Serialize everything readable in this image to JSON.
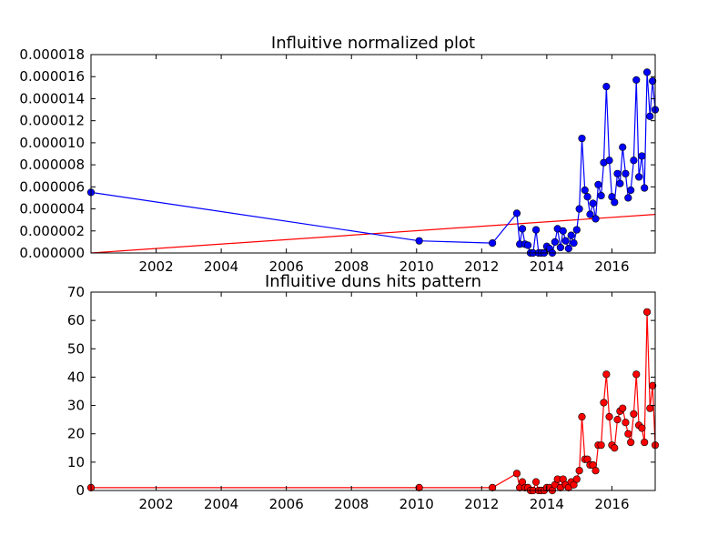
{
  "chart_data": [
    {
      "type": "line",
      "title": "Influitive normalized plot",
      "xlabel": "",
      "ylabel": "",
      "xlim": [
        2000.0,
        2017.33
      ],
      "ylim": [
        0,
        1.8e-05
      ],
      "xticks": [
        2002,
        2004,
        2006,
        2008,
        2010,
        2012,
        2014,
        2016
      ],
      "xtick_labels": [
        "2002",
        "2004",
        "2006",
        "2008",
        "2010",
        "2012",
        "2014",
        "2016"
      ],
      "yticks": [
        0,
        2e-06,
        4e-06,
        6e-06,
        8e-06,
        1e-05,
        1.2e-05,
        1.4e-05,
        1.6e-05,
        1.8e-05
      ],
      "ytick_labels": [
        "0.000000",
        "0.000002",
        "0.000004",
        "0.000006",
        "0.000008",
        "0.000010",
        "0.000012",
        "0.000014",
        "0.000016",
        "0.000018"
      ],
      "grid": false,
      "series": [
        {
          "color": "#0000ff",
          "marker": "circle",
          "points": [
            [
              2000.0,
              5.5e-06
            ],
            [
              2010.08,
              1.1e-06
            ],
            [
              2012.33,
              9e-07
            ],
            [
              2013.08,
              3.6e-06
            ],
            [
              2013.17,
              8e-07
            ],
            [
              2013.25,
              2.2e-06
            ],
            [
              2013.33,
              8e-07
            ],
            [
              2013.42,
              7e-07
            ],
            [
              2013.5,
              0.0
            ],
            [
              2013.58,
              0.0
            ],
            [
              2013.67,
              2.1e-06
            ],
            [
              2013.75,
              0.0
            ],
            [
              2013.83,
              0.0
            ],
            [
              2013.92,
              0.0
            ],
            [
              2014.0,
              6e-07
            ],
            [
              2014.08,
              4e-07
            ],
            [
              2014.17,
              0.0
            ],
            [
              2014.25,
              1e-06
            ],
            [
              2014.33,
              2.2e-06
            ],
            [
              2014.42,
              5e-07
            ],
            [
              2014.5,
              2e-06
            ],
            [
              2014.58,
              1.1e-06
            ],
            [
              2014.67,
              4e-07
            ],
            [
              2014.75,
              1.6e-06
            ],
            [
              2014.83,
              9e-07
            ],
            [
              2014.92,
              2.1e-06
            ],
            [
              2015.0,
              4e-06
            ],
            [
              2015.08,
              1.04e-05
            ],
            [
              2015.17,
              5.7e-06
            ],
            [
              2015.25,
              5.1e-06
            ],
            [
              2015.33,
              3.5e-06
            ],
            [
              2015.42,
              4.5e-06
            ],
            [
              2015.5,
              3.1e-06
            ],
            [
              2015.58,
              6.2e-06
            ],
            [
              2015.67,
              5.2e-06
            ],
            [
              2015.75,
              8.2e-06
            ],
            [
              2015.83,
              1.51e-05
            ],
            [
              2015.92,
              8.4e-06
            ],
            [
              2016.0,
              5.1e-06
            ],
            [
              2016.08,
              4.6e-06
            ],
            [
              2016.17,
              7.2e-06
            ],
            [
              2016.25,
              6.3e-06
            ],
            [
              2016.33,
              9.6e-06
            ],
            [
              2016.42,
              7.2e-06
            ],
            [
              2016.5,
              5e-06
            ],
            [
              2016.58,
              5.7e-06
            ],
            [
              2016.67,
              8.4e-06
            ],
            [
              2016.75,
              1.57e-05
            ],
            [
              2016.83,
              6.9e-06
            ],
            [
              2016.92,
              8.8e-06
            ],
            [
              2017.0,
              5.9e-06
            ],
            [
              2017.08,
              1.64e-05
            ],
            [
              2017.17,
              1.24e-05
            ],
            [
              2017.25,
              1.56e-05
            ],
            [
              2017.33,
              1.3e-05
            ]
          ]
        }
      ],
      "trend_line": {
        "color": "#ff0000",
        "points": [
          [
            2000.0,
            0.0
          ],
          [
            2017.33,
            3.5e-06
          ]
        ]
      }
    },
    {
      "type": "line",
      "title": "Influitive duns hits pattern",
      "xlabel": "",
      "ylabel": "",
      "xlim": [
        2000.0,
        2017.33
      ],
      "ylim": [
        0,
        70
      ],
      "xticks": [
        2002,
        2004,
        2006,
        2008,
        2010,
        2012,
        2014,
        2016
      ],
      "xtick_labels": [
        "2002",
        "2004",
        "2006",
        "2008",
        "2010",
        "2012",
        "2014",
        "2016"
      ],
      "yticks": [
        0,
        10,
        20,
        30,
        40,
        50,
        60,
        70
      ],
      "ytick_labels": [
        "0",
        "10",
        "20",
        "30",
        "40",
        "50",
        "60",
        "70"
      ],
      "grid": false,
      "series": [
        {
          "color": "#ff0000",
          "marker": "circle",
          "points": [
            [
              2000.0,
              1
            ],
            [
              2010.08,
              1
            ],
            [
              2012.33,
              1
            ],
            [
              2013.08,
              6
            ],
            [
              2013.17,
              1
            ],
            [
              2013.25,
              3
            ],
            [
              2013.33,
              1
            ],
            [
              2013.42,
              1
            ],
            [
              2013.5,
              0
            ],
            [
              2013.58,
              0
            ],
            [
              2013.67,
              3
            ],
            [
              2013.75,
              0
            ],
            [
              2013.83,
              0
            ],
            [
              2013.92,
              0
            ],
            [
              2014.0,
              1
            ],
            [
              2014.08,
              1
            ],
            [
              2014.17,
              0
            ],
            [
              2014.25,
              2
            ],
            [
              2014.33,
              4
            ],
            [
              2014.42,
              1
            ],
            [
              2014.5,
              4
            ],
            [
              2014.58,
              2
            ],
            [
              2014.67,
              1
            ],
            [
              2014.75,
              3
            ],
            [
              2014.83,
              2
            ],
            [
              2014.92,
              4
            ],
            [
              2015.0,
              7
            ],
            [
              2015.08,
              26
            ],
            [
              2015.17,
              11
            ],
            [
              2015.25,
              11
            ],
            [
              2015.33,
              9
            ],
            [
              2015.42,
              9
            ],
            [
              2015.5,
              7
            ],
            [
              2015.58,
              16
            ],
            [
              2015.67,
              16
            ],
            [
              2015.75,
              31
            ],
            [
              2015.83,
              41
            ],
            [
              2015.92,
              26
            ],
            [
              2016.0,
              16
            ],
            [
              2016.08,
              15
            ],
            [
              2016.17,
              25
            ],
            [
              2016.25,
              28
            ],
            [
              2016.33,
              29
            ],
            [
              2016.42,
              24
            ],
            [
              2016.5,
              20
            ],
            [
              2016.58,
              17
            ],
            [
              2016.67,
              27
            ],
            [
              2016.75,
              41
            ],
            [
              2016.83,
              23
            ],
            [
              2016.92,
              22
            ],
            [
              2017.0,
              17
            ],
            [
              2017.08,
              63
            ],
            [
              2017.17,
              29
            ],
            [
              2017.25,
              37
            ],
            [
              2017.33,
              16
            ]
          ]
        }
      ]
    }
  ]
}
